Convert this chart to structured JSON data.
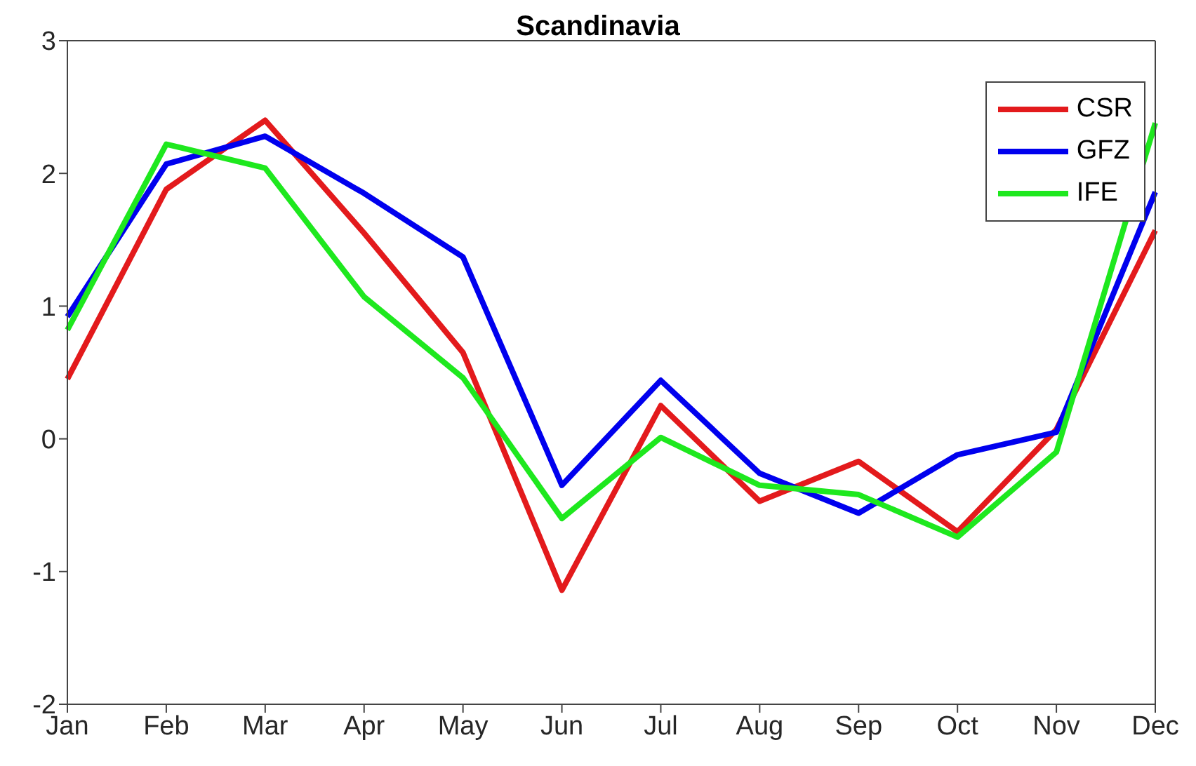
{
  "chart_data": {
    "type": "line",
    "title": "Scandinavia",
    "categories": [
      "Jan",
      "Feb",
      "Mar",
      "Apr",
      "May",
      "Jun",
      "Jul",
      "Aug",
      "Sep",
      "Oct",
      "Nov",
      "Dec"
    ],
    "series": [
      {
        "name": "CSR",
        "color": "#e31a1c",
        "values": [
          0.45,
          1.88,
          2.4,
          1.55,
          0.65,
          -1.14,
          0.25,
          -0.47,
          -0.17,
          -0.7,
          0.07,
          1.57
        ]
      },
      {
        "name": "GFZ",
        "color": "#0000ee",
        "values": [
          0.92,
          2.07,
          2.28,
          1.85,
          1.37,
          -0.35,
          0.44,
          -0.26,
          -0.56,
          -0.12,
          0.05,
          1.86
        ]
      },
      {
        "name": "IFE",
        "color": "#1ee81e",
        "values": [
          0.82,
          2.22,
          2.04,
          1.07,
          0.46,
          -0.6,
          0.01,
          -0.35,
          -0.42,
          -0.74,
          -0.1,
          2.38
        ]
      }
    ],
    "ylim": [
      -2,
      3
    ],
    "yticks": [
      -2,
      -1,
      0,
      1,
      2,
      3
    ],
    "grid": false,
    "legend": "top right",
    "marker": "none",
    "line_style": "solid"
  }
}
